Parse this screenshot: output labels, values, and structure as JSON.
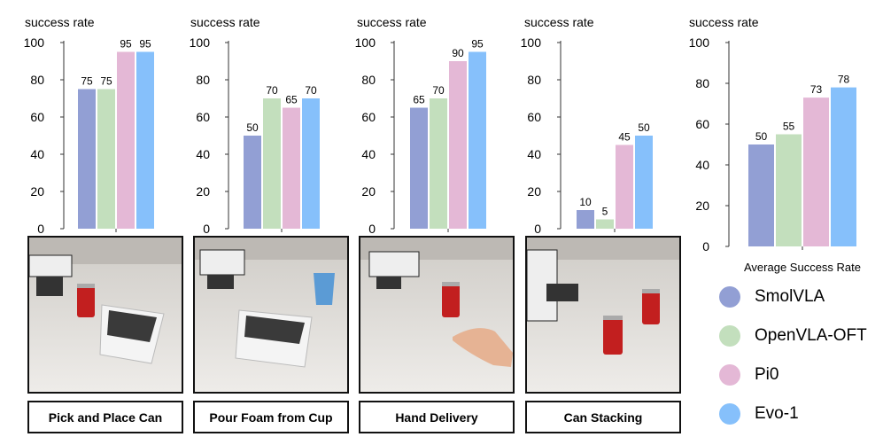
{
  "colors": {
    "SmolVLA": "#929fd4",
    "OpenVLA-OFT": "#c3dfbd",
    "Pi0": "#e4b8d6",
    "Evo-1": "#86c0fb"
  },
  "legend": {
    "items": [
      {
        "label": "SmolVLA",
        "color": "#929fd4"
      },
      {
        "label": "OpenVLA-OFT",
        "color": "#c3dfbd"
      },
      {
        "label": "Pi0",
        "color": "#e4b8d6"
      },
      {
        "label": "Evo-1",
        "color": "#86c0fb"
      }
    ]
  },
  "chart_data": [
    {
      "type": "bar",
      "title": "",
      "ylabel": "success rate",
      "xlabel": "",
      "ylim": [
        0,
        100
      ],
      "yticks": [
        0,
        20,
        40,
        60,
        80,
        100
      ],
      "series": [
        {
          "name": "SmolVLA",
          "values": [
            75
          ]
        },
        {
          "name": "OpenVLA-OFT",
          "values": [
            75
          ]
        },
        {
          "name": "Pi0",
          "values": [
            95
          ]
        },
        {
          "name": "Evo-1",
          "values": [
            95
          ]
        }
      ],
      "values": [
        75,
        75,
        95,
        95
      ],
      "task": "Pick and Place Can"
    },
    {
      "type": "bar",
      "title": "",
      "ylabel": "success rate",
      "xlabel": "",
      "ylim": [
        0,
        100
      ],
      "yticks": [
        0,
        20,
        40,
        60,
        80,
        100
      ],
      "series": [
        {
          "name": "SmolVLA",
          "values": [
            50
          ]
        },
        {
          "name": "OpenVLA-OFT",
          "values": [
            70
          ]
        },
        {
          "name": "Pi0",
          "values": [
            65
          ]
        },
        {
          "name": "Evo-1",
          "values": [
            70
          ]
        }
      ],
      "values": [
        50,
        70,
        65,
        70
      ],
      "task": "Pour Foam from Cup"
    },
    {
      "type": "bar",
      "title": "",
      "ylabel": "success rate",
      "xlabel": "",
      "ylim": [
        0,
        100
      ],
      "yticks": [
        0,
        20,
        40,
        60,
        80,
        100
      ],
      "series": [
        {
          "name": "SmolVLA",
          "values": [
            65
          ]
        },
        {
          "name": "OpenVLA-OFT",
          "values": [
            70
          ]
        },
        {
          "name": "Pi0",
          "values": [
            90
          ]
        },
        {
          "name": "Evo-1",
          "values": [
            95
          ]
        }
      ],
      "values": [
        65,
        70,
        90,
        95
      ],
      "task": "Hand Delivery"
    },
    {
      "type": "bar",
      "title": "",
      "ylabel": "success rate",
      "xlabel": "",
      "ylim": [
        0,
        100
      ],
      "yticks": [
        0,
        20,
        40,
        60,
        80,
        100
      ],
      "series": [
        {
          "name": "SmolVLA",
          "values": [
            10
          ]
        },
        {
          "name": "OpenVLA-OFT",
          "values": [
            5
          ]
        },
        {
          "name": "Pi0",
          "values": [
            45
          ]
        },
        {
          "name": "Evo-1",
          "values": [
            50
          ]
        }
      ],
      "values": [
        10,
        5,
        45,
        50
      ],
      "task": "Can Stacking"
    },
    {
      "type": "bar",
      "title": "",
      "ylabel": "success rate",
      "xlabel": "Average Success Rate",
      "ylim": [
        0,
        100
      ],
      "yticks": [
        0,
        20,
        40,
        60,
        80,
        100
      ],
      "series": [
        {
          "name": "SmolVLA",
          "values": [
            50
          ]
        },
        {
          "name": "OpenVLA-OFT",
          "values": [
            55
          ]
        },
        {
          "name": "Pi0",
          "values": [
            73
          ]
        },
        {
          "name": "Evo-1",
          "values": [
            78
          ]
        }
      ],
      "values": [
        50,
        55,
        73,
        78
      ]
    }
  ],
  "captions": [
    "Pick and Place Can",
    "Pour Foam from Cup",
    "Hand Delivery",
    "Can Stacking"
  ]
}
